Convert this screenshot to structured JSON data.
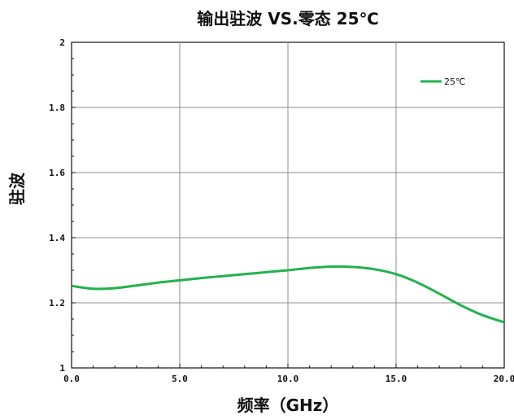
{
  "chart_data": {
    "type": "line",
    "title": "输出驻波 VS.零态 25℃",
    "xlabel": "频率（GHz）",
    "ylabel": "驻波",
    "xlim": [
      0,
      20
    ],
    "ylim": [
      1,
      2
    ],
    "x_ticks": [
      "0.0",
      "5.0",
      "10.0",
      "15.0",
      "20.0"
    ],
    "y_ticks": [
      "1",
      "1.2",
      "1.4",
      "1.6",
      "1.8",
      "2"
    ],
    "grid": true,
    "legend_position": "top-right",
    "series": [
      {
        "name": "25℃",
        "color": "#22b24c",
        "x": [
          0,
          1,
          2,
          3,
          4,
          5,
          6,
          7,
          8,
          9,
          10,
          11,
          12,
          13,
          14,
          15,
          16,
          17,
          18,
          19,
          20
        ],
        "y": [
          1.252,
          1.243,
          1.245,
          1.253,
          1.262,
          1.269,
          1.276,
          1.282,
          1.288,
          1.294,
          1.3,
          1.307,
          1.311,
          1.31,
          1.303,
          1.288,
          1.262,
          1.228,
          1.192,
          1.162,
          1.14
        ]
      }
    ]
  }
}
